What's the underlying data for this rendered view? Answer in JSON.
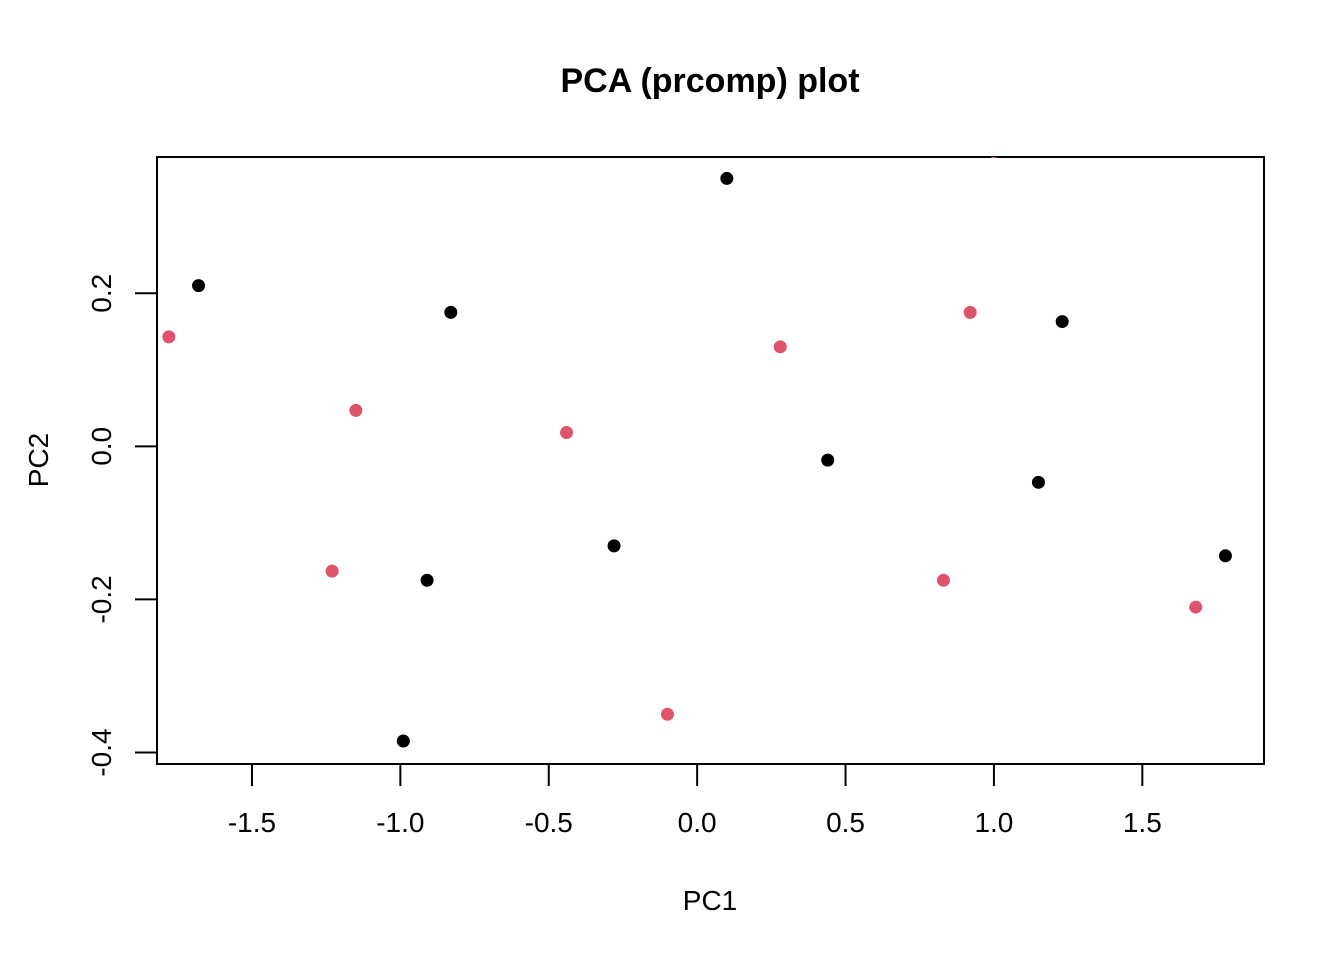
{
  "chart_data": {
    "type": "scatter",
    "title": "PCA (prcomp) plot",
    "xlabel": "PC1",
    "ylabel": "PC2",
    "xlim": [
      -1.82,
      1.91
    ],
    "ylim": [
      -0.415,
      0.378
    ],
    "x_ticks": [
      -1.5,
      -1.0,
      -0.5,
      0.0,
      0.5,
      1.0,
      1.5
    ],
    "x_tick_labels": [
      "-1.5",
      "-1.0",
      "-0.5",
      "0.0",
      "0.5",
      "1.0",
      "1.5"
    ],
    "y_ticks": [
      -0.4,
      -0.2,
      0.0,
      0.2
    ],
    "y_tick_labels": [
      "-0.4",
      "-0.2",
      "0.0",
      "0.2"
    ],
    "grid": false,
    "series": [
      {
        "color": "#000000",
        "points": [
          {
            "x": -1.68,
            "y": 0.21
          },
          {
            "x": -0.83,
            "y": 0.175
          },
          {
            "x": 0.1,
            "y": 0.35
          },
          {
            "x": 1.23,
            "y": 0.163
          },
          {
            "x": 0.44,
            "y": -0.018
          },
          {
            "x": 1.15,
            "y": -0.047
          },
          {
            "x": -0.28,
            "y": -0.13
          },
          {
            "x": -0.91,
            "y": -0.175
          },
          {
            "x": 1.78,
            "y": -0.143
          },
          {
            "x": -0.99,
            "y": -0.385
          }
        ]
      },
      {
        "color": "#DF536B",
        "points": [
          {
            "x": -1.78,
            "y": 0.143
          },
          {
            "x": -1.15,
            "y": 0.047
          },
          {
            "x": -0.44,
            "y": 0.018
          },
          {
            "x": 0.28,
            "y": 0.13
          },
          {
            "x": 0.92,
            "y": 0.175
          },
          {
            "x": 1.0,
            "y": 0.385
          },
          {
            "x": -1.23,
            "y": -0.163
          },
          {
            "x": 0.83,
            "y": -0.175
          },
          {
            "x": 1.68,
            "y": -0.21
          },
          {
            "x": -0.1,
            "y": -0.35
          }
        ]
      }
    ]
  }
}
